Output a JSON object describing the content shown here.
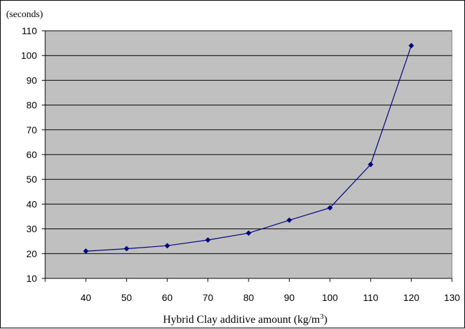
{
  "chart_data": {
    "type": "line",
    "title": "",
    "ylabel": "(seconds)",
    "xlabel": {
      "prefix": "Hybrid Clay additive amount (kg/m",
      "superscript": "3",
      "suffix": ")"
    },
    "xlim": [
      30,
      130
    ],
    "ylim": [
      10,
      110
    ],
    "x_ticks": [
      40,
      50,
      60,
      70,
      80,
      90,
      100,
      110,
      120,
      130
    ],
    "y_ticks": [
      10,
      20,
      30,
      40,
      50,
      60,
      70,
      80,
      90,
      100,
      110
    ],
    "grid": true,
    "legend": "none",
    "series": [
      {
        "x": [
          40,
          50,
          60,
          70,
          80,
          90,
          100,
          110,
          120
        ],
        "values": [
          21,
          22,
          23.2,
          25.5,
          28.3,
          33.5,
          38.5,
          56,
          104
        ]
      }
    ],
    "colors": {
      "plot_background": "#c0c0c0",
      "line": "#000080",
      "marker": "#000080",
      "gridline": "#000000"
    }
  }
}
